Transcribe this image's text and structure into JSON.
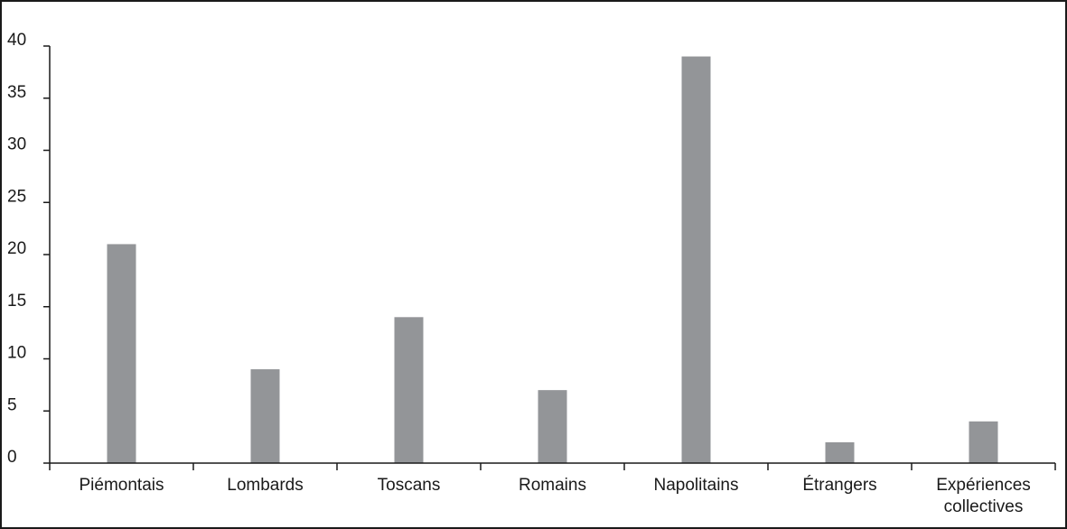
{
  "chart_data": {
    "type": "bar",
    "title": "",
    "xlabel": "",
    "ylabel": "",
    "categories": [
      "Piémontais",
      "Lombards",
      "Toscans",
      "Romains",
      "Napolitains",
      "Étrangers",
      "Expériences collectives"
    ],
    "category_label_lines": [
      [
        "Piémontais"
      ],
      [
        "Lombards"
      ],
      [
        "Toscans"
      ],
      [
        "Romains"
      ],
      [
        "Napolitains"
      ],
      [
        "Étrangers"
      ],
      [
        "Expériences",
        "collectives"
      ]
    ],
    "values": [
      21,
      9,
      14,
      7,
      39,
      2,
      4
    ],
    "ylim": [
      0,
      40
    ],
    "yticks": [
      0,
      5,
      10,
      15,
      20,
      25,
      30,
      35,
      40
    ],
    "grid": false,
    "legend": "none",
    "colors": {
      "bar": "#939598",
      "axis": "#1a1a1a",
      "frame": "#1a1a1a"
    }
  }
}
